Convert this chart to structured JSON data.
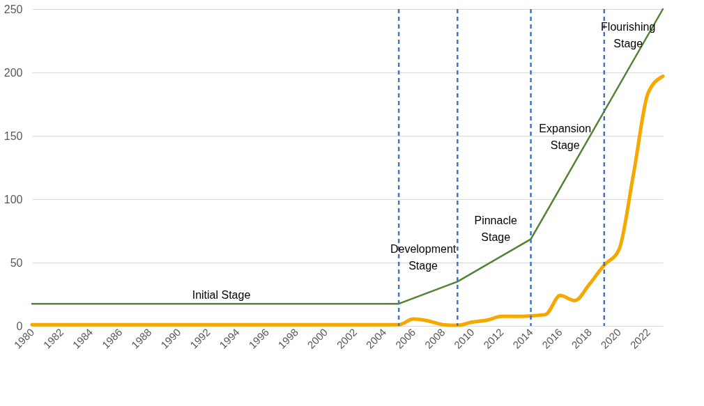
{
  "chart_data": {
    "type": "line",
    "x": [
      1980,
      1981,
      1982,
      1983,
      1984,
      1985,
      1986,
      1987,
      1988,
      1989,
      1990,
      1991,
      1992,
      1993,
      1994,
      1995,
      1996,
      1997,
      1998,
      1999,
      2000,
      2001,
      2002,
      2003,
      2004,
      2005,
      2006,
      2007,
      2008,
      2009,
      2010,
      2011,
      2012,
      2013,
      2014,
      2015,
      2016,
      2017,
      2018,
      2019,
      2020,
      2021,
      2022,
      2023
    ],
    "series": [
      {
        "color": "#f5a800",
        "values": [
          1,
          1,
          1,
          1,
          1,
          1,
          1,
          1,
          1,
          1,
          1,
          1,
          1,
          1,
          1,
          1,
          1,
          1,
          1,
          1,
          1,
          1,
          1,
          1,
          1,
          1,
          5.5,
          4,
          1,
          0.5,
          3,
          4.5,
          7.5,
          7.5,
          8,
          9,
          24,
          20,
          33,
          48,
          60,
          120,
          184,
          197
        ]
      },
      {
        "color": "#548235",
        "x": [
          1980,
          2005,
          2009,
          2014,
          2023
        ],
        "values": [
          17.5,
          17.5,
          35,
          68.5,
          250
        ]
      }
    ],
    "xlim": [
      1980,
      2023
    ],
    "xticks": [
      1980,
      1982,
      1984,
      1986,
      1988,
      1990,
      1992,
      1994,
      1996,
      1998,
      2000,
      2002,
      2004,
      2006,
      2008,
      2010,
      2012,
      2014,
      2016,
      2018,
      2020,
      2022
    ],
    "ylim": [
      0,
      250
    ],
    "yticks": [
      0,
      50,
      100,
      150,
      200,
      250
    ],
    "grid": "y",
    "ref_lines": [
      {
        "axis": "x",
        "value": 2005,
        "color": "#4472c4",
        "line_style": "dashed"
      },
      {
        "axis": "x",
        "value": 2009,
        "color": "#4472c4",
        "line_style": "dashed"
      },
      {
        "axis": "x",
        "value": 2014,
        "color": "#4472c4",
        "line_style": "dashed"
      },
      {
        "axis": "x",
        "value": 2019,
        "color": "#4472c4",
        "line_style": "dashed"
      }
    ],
    "annotations": [
      "Initial Stage",
      "Development\nStage",
      "Pinnacle\nStage",
      "Expansion\nStage",
      "Flourishing\nStage"
    ]
  }
}
